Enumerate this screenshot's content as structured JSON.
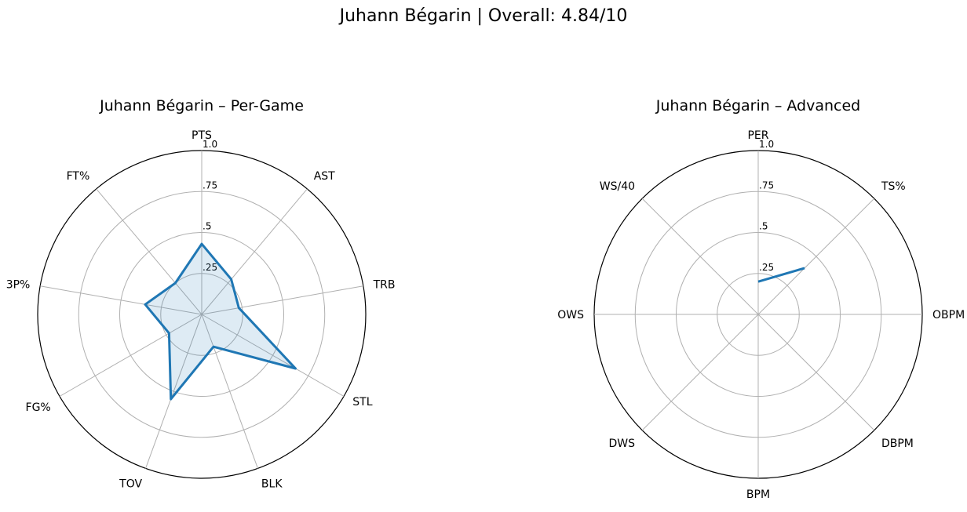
{
  "figure": {
    "suptitle": "Juhann Bégarin | Overall: 4.84/10"
  },
  "chart_data": [
    {
      "type": "radar",
      "title": "Juhann Bégarin – Per-Game",
      "categories": [
        "PTS",
        "AST",
        "TRB",
        "STL",
        "BLK",
        "TOV",
        "FG%",
        "3P%",
        "FT%"
      ],
      "values": [
        0.43,
        0.28,
        0.23,
        0.66,
        0.21,
        0.55,
        0.23,
        0.35,
        0.25
      ],
      "rlim": [
        0,
        1
      ],
      "radial_ticks": [
        0.25,
        0.5,
        0.75,
        1.0
      ],
      "radial_tick_labels": [
        ".25",
        ".5",
        ".75",
        "1.0"
      ],
      "filled": true,
      "grid": true,
      "color": "#1f77b4"
    },
    {
      "type": "radar",
      "title": "Juhann Bégarin – Advanced",
      "categories": [
        "PER",
        "TS%",
        "OBPM",
        "DBPM",
        "BPM",
        "DWS",
        "OWS",
        "WS/40"
      ],
      "values": [
        0.2,
        0.4,
        null,
        null,
        null,
        null,
        null,
        null
      ],
      "rlim": [
        0,
        1
      ],
      "radial_ticks": [
        0.25,
        0.5,
        0.75,
        1.0
      ],
      "radial_tick_labels": [
        ".25",
        ".5",
        ".75",
        "1.0"
      ],
      "filled": false,
      "grid": true,
      "color": "#1f77b4"
    }
  ]
}
